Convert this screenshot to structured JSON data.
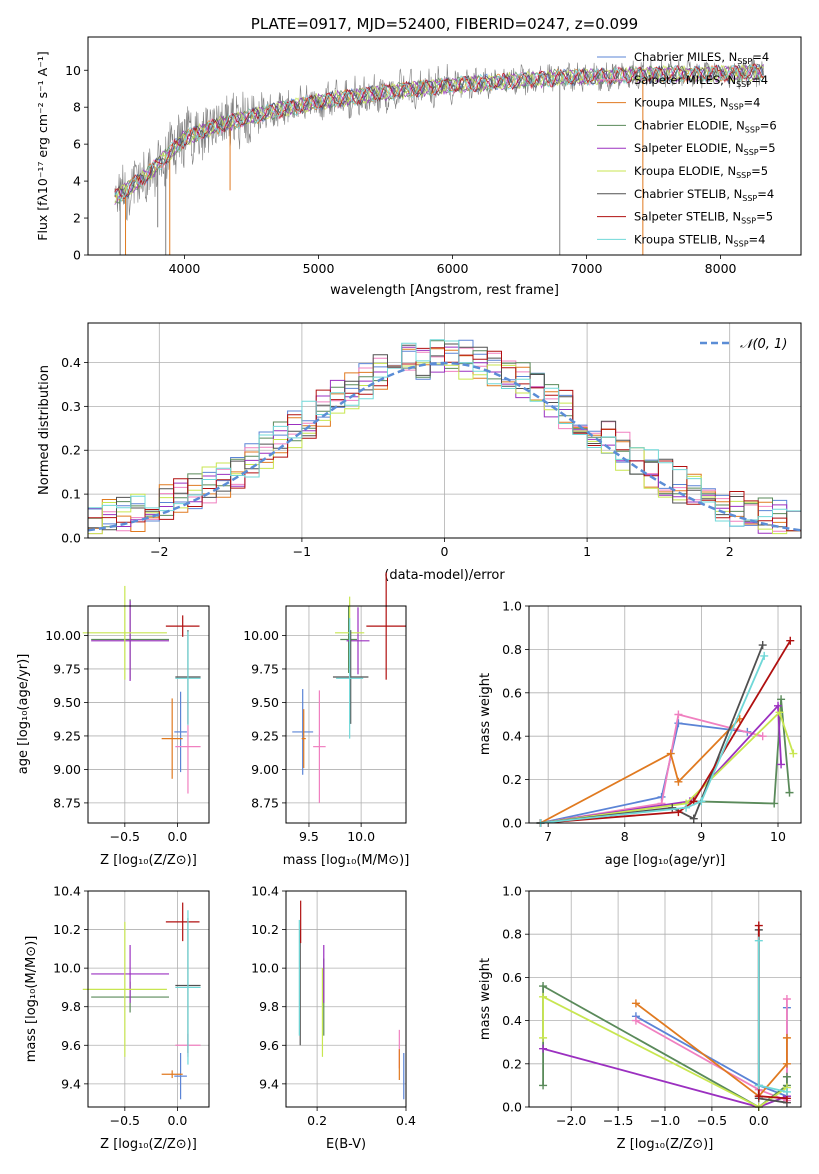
{
  "colors": {
    "Chabrier MILES": "#5b84d6",
    "Salpeter MILES": "#f080c0",
    "Kroupa MILES": "#e07a20",
    "Chabrier ELODIE": "#5a8a5a",
    "Salpeter ELODIE": "#9b30c0",
    "Kroupa ELODIE": "#c8e650",
    "Chabrier STELIB": "#505050",
    "Salpeter STELIB": "#b01010",
    "Kroupa STELIB": "#70d8d8",
    "normal": "#5b8dd6",
    "gray_spec": "#808080"
  },
  "chart_data": [
    {
      "type": "line",
      "id": "spectrum",
      "title": "PLATE=0917, MJD=52400, FIBERID=0247, z=0.099",
      "xlabel": "wavelength [Angstrom, rest frame]",
      "ylabel": "Flux [fλ10⁻¹⁷ erg cm⁻² s⁻¹ A⁻¹]",
      "xlim": [
        3280,
        8600
      ],
      "ylim": [
        0,
        11.8
      ],
      "xticks": [
        "4000",
        "5000",
        "6000",
        "7000",
        "8000"
      ],
      "xtick_values": [
        4000,
        5000,
        6000,
        7000,
        8000
      ],
      "yticks": [
        "0",
        "2",
        "4",
        "6",
        "8",
        "10"
      ],
      "ytick_values": [
        0,
        2,
        4,
        6,
        8,
        10
      ],
      "grid": false,
      "legend_position": "top-right",
      "legend": [
        {
          "name": "Chabrier MILES",
          "nssp": "4"
        },
        {
          "name": "Salpeter MILES",
          "nssp": "4"
        },
        {
          "name": "Kroupa MILES",
          "nssp": "4"
        },
        {
          "name": "Chabrier ELODIE",
          "nssp": "6"
        },
        {
          "name": "Salpeter ELODIE",
          "nssp": "5"
        },
        {
          "name": "Kroupa ELODIE",
          "nssp": "5"
        },
        {
          "name": "Chabrier STELIB",
          "nssp": "4"
        },
        {
          "name": "Salpeter STELIB",
          "nssp": "5"
        },
        {
          "name": "Kroupa STELIB",
          "nssp": "4"
        }
      ],
      "continuum": {
        "x": [
          3480,
          3700,
          3900,
          4000,
          4200,
          4500,
          4800,
          5000,
          5300,
          5600,
          6000,
          6400,
          6800,
          7200,
          7600,
          8000,
          8300
        ],
        "y": [
          3.1,
          4.2,
          5.6,
          6.3,
          6.9,
          7.5,
          8.0,
          8.3,
          8.6,
          8.9,
          9.2,
          9.4,
          9.6,
          9.7,
          9.8,
          9.8,
          9.9
        ]
      }
    },
    {
      "type": "step",
      "id": "residuals",
      "xlabel": "(data-model)/error",
      "ylabel": "Normed distribution",
      "xlim": [
        -2.5,
        2.5
      ],
      "ylim": [
        0,
        0.49
      ],
      "xticks": [
        "−2",
        "−1",
        "0",
        "1",
        "2"
      ],
      "xtick_values": [
        -2,
        -1,
        0,
        1,
        2
      ],
      "yticks": [
        "0.0",
        "0.1",
        "0.2",
        "0.3",
        "0.4"
      ],
      "ytick_values": [
        0,
        0.1,
        0.2,
        0.3,
        0.4
      ],
      "grid": true,
      "legend_position": "top-right",
      "legend_label": "𝒩(0, 1)",
      "bin_width": 0.1
    },
    {
      "type": "errorbar",
      "id": "age-vs-z",
      "xlabel": "Z [log₁₀(Z/Z⊙)]",
      "ylabel": "age  [log₁₀(age/yr)]",
      "xlim": [
        -0.85,
        0.3
      ],
      "ylim": [
        8.6,
        10.22
      ],
      "xticks": [
        "−0.5",
        "0.0"
      ],
      "xtick_values": [
        -0.5,
        0.0
      ],
      "yticks": [
        "8.75",
        "9.00",
        "9.25",
        "9.50",
        "9.75",
        "10.00"
      ],
      "ytick_values": [
        8.75,
        9.0,
        9.25,
        9.5,
        9.75,
        10.0
      ],
      "grid": true,
      "points": [
        {
          "series": "Chabrier MILES",
          "x": 0.03,
          "xerr": 0.06,
          "y": 9.28,
          "yerr": 0.3
        },
        {
          "series": "Salpeter MILES",
          "x": 0.1,
          "xerr": 0.12,
          "y": 9.17,
          "yerr": 0.35
        },
        {
          "series": "Kroupa MILES",
          "x": -0.05,
          "xerr": 0.1,
          "y": 9.23,
          "yerr": 0.3
        },
        {
          "series": "Chabrier ELODIE",
          "x": -0.45,
          "xerr": 0.37,
          "y": 9.97,
          "yerr": 0.3
        },
        {
          "series": "Salpeter ELODIE",
          "x": -0.45,
          "xerr": 0.37,
          "y": 9.96,
          "yerr": 0.3
        },
        {
          "series": "Kroupa ELODIE",
          "x": -0.5,
          "xerr": 0.4,
          "y": 10.02,
          "yerr": 0.35
        },
        {
          "series": "Chabrier STELIB",
          "x": 0.1,
          "xerr": 0.12,
          "y": 9.69,
          "yerr": 0.35
        },
        {
          "series": "Salpeter STELIB",
          "x": 0.05,
          "xerr": 0.16,
          "y": 10.07,
          "yerr": 0.08
        },
        {
          "series": "Kroupa STELIB",
          "x": 0.1,
          "xerr": 0.12,
          "y": 9.68,
          "yerr": 0.35
        }
      ]
    },
    {
      "type": "errorbar",
      "id": "age-vs-mass",
      "xlabel": "mass [log₁₀(M/M⊙)]",
      "ylabel": "",
      "xlim": [
        9.28,
        10.43
      ],
      "ylim": [
        8.6,
        10.22
      ],
      "xticks": [
        "9.5",
        "10.0"
      ],
      "xtick_values": [
        9.5,
        10.0
      ],
      "yticks": [
        "8.75",
        "9.00",
        "9.25",
        "9.50",
        "9.75",
        "10.00"
      ],
      "ytick_values": [
        8.75,
        9.0,
        9.25,
        9.5,
        9.75,
        10.0
      ],
      "grid": true,
      "points": [
        {
          "series": "Chabrier MILES",
          "x": 9.44,
          "xerr": 0.1,
          "y": 9.28,
          "yerr": 0.32
        },
        {
          "series": "Salpeter MILES",
          "x": 9.6,
          "xerr": 0.06,
          "y": 9.17,
          "yerr": 0.42
        },
        {
          "series": "Kroupa MILES",
          "x": 9.45,
          "xerr": 0.02,
          "y": 9.23,
          "yerr": 0.22
        },
        {
          "series": "Chabrier ELODIE",
          "x": 9.88,
          "xerr": 0.08,
          "y": 9.97,
          "yerr": 0.25
        },
        {
          "series": "Salpeter ELODIE",
          "x": 9.97,
          "xerr": 0.11,
          "y": 9.96,
          "yerr": 0.25
        },
        {
          "series": "Kroupa ELODIE",
          "x": 9.89,
          "xerr": 0.14,
          "y": 10.02,
          "yerr": 0.27
        },
        {
          "series": "Chabrier STELIB",
          "x": 9.9,
          "xerr": 0.17,
          "y": 9.69,
          "yerr": 0.35
        },
        {
          "series": "Salpeter STELIB",
          "x": 10.24,
          "xerr": 0.19,
          "y": 10.07,
          "yerr": 0.4
        },
        {
          "series": "Kroupa STELIB",
          "x": 9.89,
          "xerr": 0.13,
          "y": 9.68,
          "yerr": 0.45
        }
      ]
    },
    {
      "type": "line",
      "id": "weight-vs-age",
      "xlabel": "age  [log₁₀(age/yr)]",
      "ylabel": "mass weight",
      "xlim": [
        6.75,
        10.3
      ],
      "ylim": [
        0,
        1
      ],
      "xticks": [
        "7",
        "8",
        "9",
        "10"
      ],
      "xtick_values": [
        7,
        8,
        9,
        10
      ],
      "yticks": [
        "0.0",
        "0.2",
        "0.4",
        "0.6",
        "0.8",
        "1.0"
      ],
      "ytick_values": [
        0,
        0.2,
        0.4,
        0.6,
        0.8,
        1.0
      ],
      "grid": true,
      "series": [
        {
          "name": "Chabrier MILES",
          "x": [
            6.9,
            8.48,
            8.7,
            9.6
          ],
          "y": [
            0.0,
            0.12,
            0.46,
            0.42
          ]
        },
        {
          "name": "Salpeter MILES",
          "x": [
            6.9,
            8.48,
            8.7,
            9.8
          ],
          "y": [
            0.0,
            0.09,
            0.5,
            0.4
          ]
        },
        {
          "name": "Kroupa MILES",
          "x": [
            6.9,
            8.6,
            8.7,
            9.5
          ],
          "y": [
            0.0,
            0.32,
            0.19,
            0.48
          ]
        },
        {
          "name": "Chabrier ELODIE",
          "x": [
            6.9,
            8.9,
            9.95,
            10.04,
            10.15
          ],
          "y": [
            0.0,
            0.1,
            0.09,
            0.57,
            0.14
          ]
        },
        {
          "name": "Salpeter ELODIE",
          "x": [
            6.9,
            8.85,
            10.0,
            10.04
          ],
          "y": [
            0.0,
            0.1,
            0.54,
            0.27
          ]
        },
        {
          "name": "Kroupa ELODIE",
          "x": [
            6.9,
            8.8,
            10.02,
            10.2
          ],
          "y": [
            0.0,
            0.09,
            0.51,
            0.32
          ]
        },
        {
          "name": "Chabrier STELIB",
          "x": [
            6.9,
            8.62,
            8.9,
            9.8
          ],
          "y": [
            0.0,
            0.07,
            0.02,
            0.82
          ]
        },
        {
          "name": "Salpeter STELIB",
          "x": [
            6.9,
            8.7,
            8.9,
            10.16
          ],
          "y": [
            0.0,
            0.05,
            0.1,
            0.84
          ]
        },
        {
          "name": "Kroupa STELIB",
          "x": [
            6.9,
            8.8,
            9.0,
            9.82
          ],
          "y": [
            0.0,
            0.07,
            0.1,
            0.77
          ]
        }
      ]
    },
    {
      "type": "errorbar",
      "id": "mass-vs-z",
      "xlabel": "Z [log₁₀(Z/Z⊙)]",
      "ylabel": "mass [log₁₀(M/M⊙)]",
      "xlim": [
        -0.85,
        0.3
      ],
      "ylim": [
        9.28,
        10.4
      ],
      "xticks": [
        "−0.5",
        "0.0"
      ],
      "xtick_values": [
        -0.5,
        0.0
      ],
      "yticks": [
        "9.4",
        "9.6",
        "9.8",
        "10.0",
        "10.2",
        "10.4"
      ],
      "ytick_values": [
        9.4,
        9.6,
        9.8,
        10.0,
        10.2,
        10.4
      ],
      "grid": true,
      "points": [
        {
          "series": "Chabrier MILES",
          "x": 0.03,
          "xerr": 0.06,
          "y": 9.44,
          "yerr": 0.12
        },
        {
          "series": "Salpeter MILES",
          "x": 0.1,
          "xerr": 0.12,
          "y": 9.6,
          "yerr": 0.06
        },
        {
          "series": "Kroupa MILES",
          "x": -0.05,
          "xerr": 0.1,
          "y": 9.45,
          "yerr": 0.02
        },
        {
          "series": "Chabrier ELODIE",
          "x": -0.45,
          "xerr": 0.37,
          "y": 9.85,
          "yerr": 0.08
        },
        {
          "series": "Salpeter ELODIE",
          "x": -0.45,
          "xerr": 0.37,
          "y": 9.97,
          "yerr": 0.15
        },
        {
          "series": "Kroupa ELODIE",
          "x": -0.5,
          "xerr": 0.4,
          "y": 9.89,
          "yerr": 0.35
        },
        {
          "series": "Chabrier STELIB",
          "x": 0.1,
          "xerr": 0.12,
          "y": 9.91,
          "yerr": 0.35
        },
        {
          "series": "Salpeter STELIB",
          "x": 0.05,
          "xerr": 0.16,
          "y": 10.24,
          "yerr": 0.1
        },
        {
          "series": "Kroupa STELIB",
          "x": 0.1,
          "xerr": 0.12,
          "y": 9.9,
          "yerr": 0.4
        }
      ]
    },
    {
      "type": "errorbar",
      "id": "mass-vs-ebv",
      "xlabel": "E(B-V)",
      "ylabel": "",
      "xlim": [
        0.13,
        0.4
      ],
      "ylim": [
        9.28,
        10.4
      ],
      "xticks": [
        "0.2",
        "0.4"
      ],
      "xtick_values": [
        0.2,
        0.4
      ],
      "yticks": [
        "9.4",
        "9.6",
        "9.8",
        "10.0",
        "10.2",
        "10.4"
      ],
      "ytick_values": [
        9.4,
        9.6,
        9.8,
        10.0,
        10.2,
        10.4
      ],
      "grid": true,
      "points": [
        {
          "series": "Chabrier MILES",
          "x": 0.395,
          "xerr": 0.0,
          "y": 9.44,
          "yerr": 0.12
        },
        {
          "series": "Salpeter MILES",
          "x": 0.385,
          "xerr": 0.0,
          "y": 9.58,
          "yerr": 0.1
        },
        {
          "series": "Kroupa MILES",
          "x": 0.385,
          "xerr": 0.0,
          "y": 9.5,
          "yerr": 0.08
        },
        {
          "series": "Chabrier ELODIE",
          "x": 0.215,
          "xerr": 0.0,
          "y": 9.85,
          "yerr": 0.2
        },
        {
          "series": "Salpeter ELODIE",
          "x": 0.215,
          "xerr": 0.0,
          "y": 9.97,
          "yerr": 0.15
        },
        {
          "series": "Kroupa ELODIE",
          "x": 0.212,
          "xerr": 0.0,
          "y": 9.77,
          "yerr": 0.23
        },
        {
          "series": "Chabrier STELIB",
          "x": 0.162,
          "xerr": 0.0,
          "y": 9.9,
          "yerr": 0.3
        },
        {
          "series": "Salpeter STELIB",
          "x": 0.163,
          "xerr": 0.0,
          "y": 10.24,
          "yerr": 0.11
        },
        {
          "series": "Kroupa STELIB",
          "x": 0.16,
          "xerr": 0.0,
          "y": 9.95,
          "yerr": 0.3
        }
      ]
    },
    {
      "type": "line",
      "id": "weight-vs-z",
      "xlabel": "Z [log₁₀(Z/Z⊙)]",
      "ylabel": "mass weight",
      "xlim": [
        -2.45,
        0.45
      ],
      "ylim": [
        0,
        1
      ],
      "xticks": [
        "−2.0",
        "−1.5",
        "−1.0",
        "−0.5",
        "0.0"
      ],
      "xtick_values": [
        -2.0,
        -1.5,
        -1.0,
        -0.5,
        0.0
      ],
      "yticks": [
        "0.0",
        "0.2",
        "0.4",
        "0.6",
        "0.8",
        "1.0"
      ],
      "ytick_values": [
        0,
        0.2,
        0.4,
        0.6,
        0.8,
        1.0
      ],
      "grid": true,
      "series": [
        {
          "name": "Chabrier MILES",
          "x": [
            -1.31,
            0.0,
            0.3,
            0.3
          ],
          "y": [
            0.42,
            0.1,
            0.05,
            0.46
          ]
        },
        {
          "name": "Salpeter MILES",
          "x": [
            -1.31,
            0.0,
            0.3,
            0.3
          ],
          "y": [
            0.4,
            0.08,
            0.03,
            0.5
          ]
        },
        {
          "name": "Kroupa MILES",
          "x": [
            -1.31,
            0.0,
            0.3,
            0.3
          ],
          "y": [
            0.48,
            0.05,
            0.2,
            0.32
          ]
        },
        {
          "name": "Chabrier ELODIE",
          "x": [
            -2.3,
            -2.3,
            0.0,
            0.3,
            0.3
          ],
          "y": [
            0.1,
            0.56,
            0.0,
            0.1,
            0.14
          ]
        },
        {
          "name": "Salpeter ELODIE",
          "x": [
            -2.3,
            0.0,
            0.3
          ],
          "y": [
            0.27,
            0.0,
            0.05
          ]
        },
        {
          "name": "Kroupa ELODIE",
          "x": [
            -2.3,
            -2.3,
            0.0,
            0.3
          ],
          "y": [
            0.32,
            0.51,
            0.0,
            0.09
          ]
        },
        {
          "name": "Chabrier STELIB",
          "x": [
            0.0,
            0.0,
            0.3
          ],
          "y": [
            0.82,
            0.04,
            0.02
          ]
        },
        {
          "name": "Salpeter STELIB",
          "x": [
            0.0,
            0.0,
            0.3
          ],
          "y": [
            0.84,
            0.05,
            0.04
          ]
        },
        {
          "name": "Kroupa STELIB",
          "x": [
            0.0,
            0.0,
            0.3
          ],
          "y": [
            0.77,
            0.1,
            0.07
          ]
        }
      ]
    }
  ]
}
